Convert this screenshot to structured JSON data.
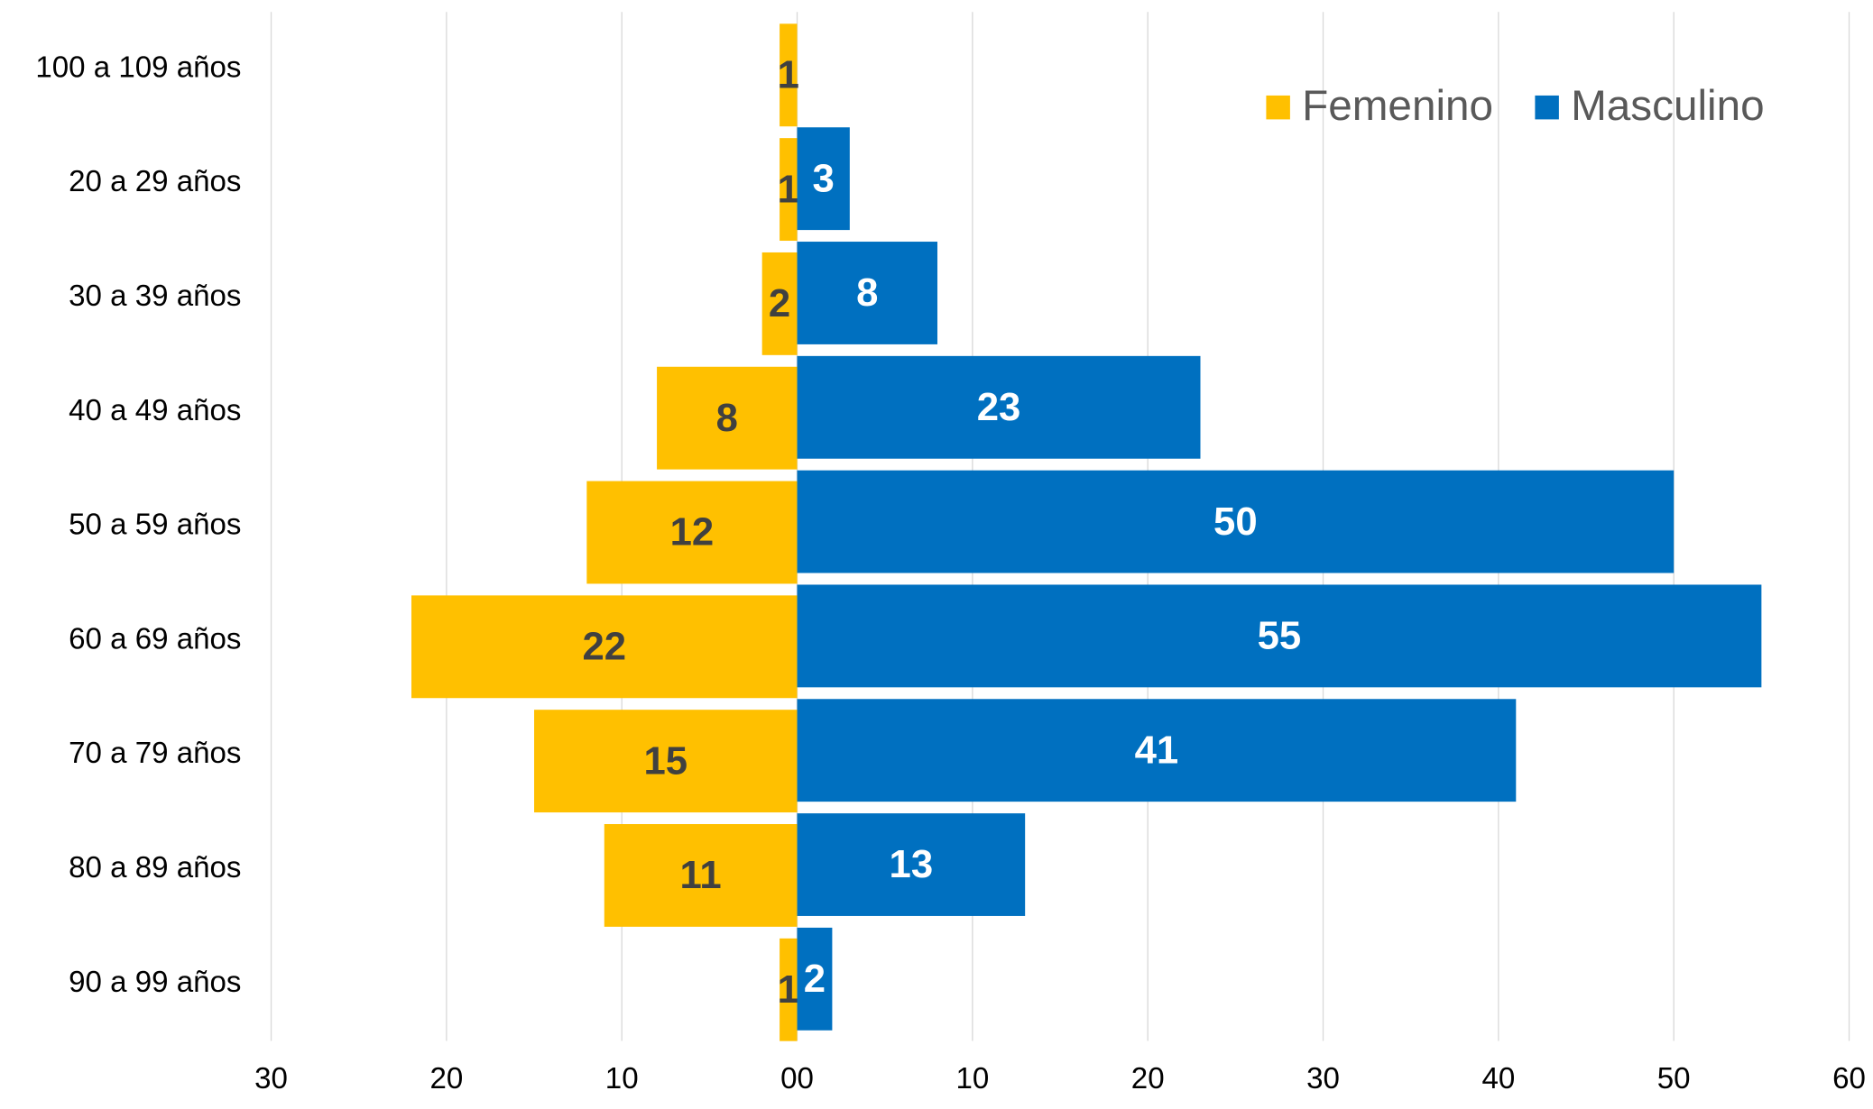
{
  "chart_data": {
    "type": "pyramid",
    "categories": [
      "100 a 109 años",
      "20 a 29 años",
      "30 a 39 años",
      "40 a 49 años",
      "50 a 59 años",
      "60 a 69 años",
      "70 a 79 años",
      "80 a 89 años",
      "90 a 99 años"
    ],
    "series": [
      {
        "name": "Femenino",
        "color": "#FFC000",
        "side": "left",
        "values": [
          1,
          1,
          2,
          8,
          12,
          22,
          15,
          11,
          1
        ]
      },
      {
        "name": "Masculino",
        "color": "#0070C0",
        "side": "right",
        "values": [
          null,
          3,
          8,
          23,
          50,
          55,
          41,
          13,
          2
        ]
      }
    ],
    "xlim": [
      -30,
      60
    ],
    "xticks": [
      {
        "value": -30,
        "label": "30"
      },
      {
        "value": -20,
        "label": "20"
      },
      {
        "value": -10,
        "label": "10"
      },
      {
        "value": 0,
        "label": "00"
      },
      10,
      20,
      30,
      40,
      50,
      60
    ],
    "grid": true,
    "legend": "top-right"
  }
}
